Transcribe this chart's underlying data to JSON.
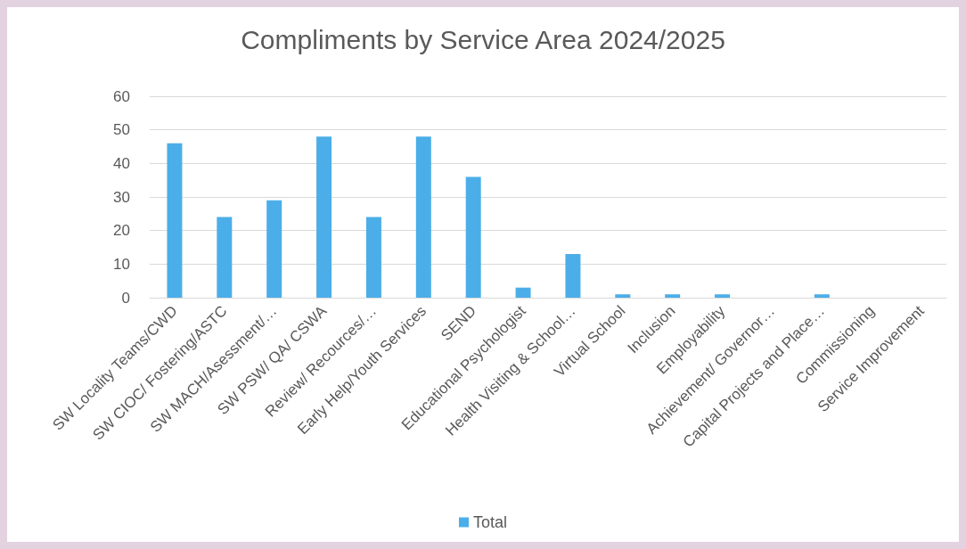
{
  "chart_data": {
    "type": "bar",
    "title": "Compliments by Service Area 2024/2025",
    "categories": [
      "SW Locality Teams/CWD",
      "SW CIOC/ Fostering/ASTC",
      "SW MACH/Asessment/…",
      "SW PSW/ QA/ CSWA",
      "Review/ Recources/…",
      "Early Help/Youth Services",
      "SEND",
      "Educational Psychologist",
      "Health Visiting & School…",
      "Virtual School",
      "Inclusion",
      "Employability",
      "Achievement/ Governor…",
      "Capital Projects and Place…",
      "Commissioning",
      "Service Improvement"
    ],
    "series": [
      {
        "name": "Total",
        "color": "#4baee8",
        "values": [
          46,
          24,
          29,
          48,
          24,
          48,
          36,
          3,
          13,
          1,
          1,
          1,
          0,
          1,
          0,
          0
        ]
      }
    ],
    "ylim": [
      0,
      60
    ],
    "yticks": [
      0,
      10,
      20,
      30,
      40,
      50,
      60
    ],
    "grid": "y",
    "legend": "bottom"
  }
}
